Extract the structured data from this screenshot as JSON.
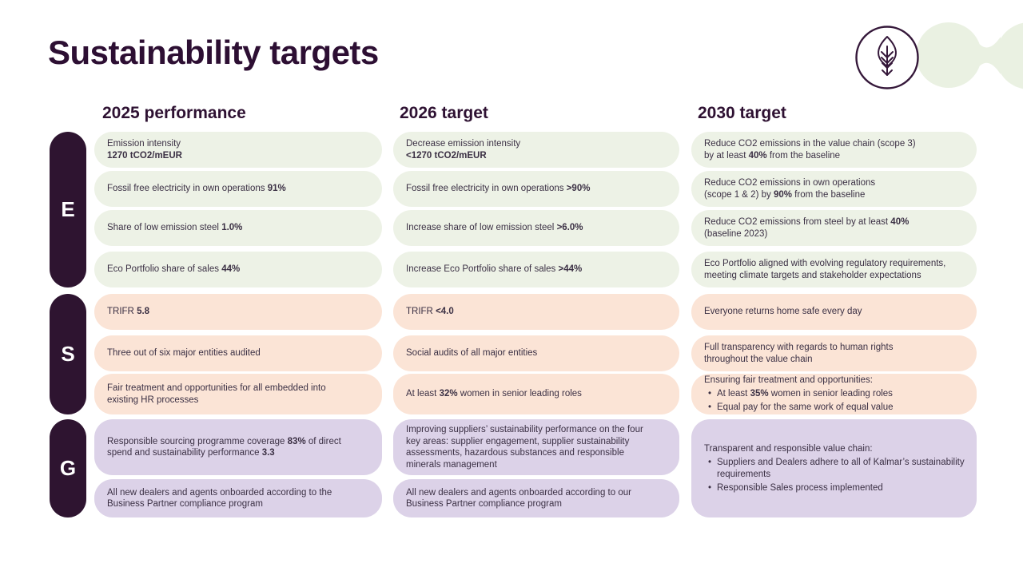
{
  "title": "Sustainability targets",
  "bullet_glyph": "•",
  "brand": {
    "leaf_icon": "leaf-with-arrow-in-circle",
    "circle_stroke_color": "#35183a",
    "blob_color": "#eaf1e2"
  },
  "colors": {
    "dark_purple": "#2e1430",
    "environment_cell": "#edf2e6",
    "social_cell": "#fbe4d6",
    "governance_cell": "#dcd2e8",
    "text": "#3b3044"
  },
  "columns": [
    {
      "key": "2025",
      "label": "2025 performance"
    },
    {
      "key": "2026",
      "label": "2026 target"
    },
    {
      "key": "2030",
      "label": "2030 target"
    }
  ],
  "groups": [
    {
      "label": "E",
      "row": 1,
      "span": 4
    },
    {
      "label": "S",
      "row": 5,
      "span": 3
    },
    {
      "label": "G",
      "row": 8,
      "span": 2
    }
  ],
  "cells": [
    {
      "column": "2025",
      "row": 1,
      "group": "E",
      "lines": [
        {
          "bullet": false,
          "segments": [
            {
              "text": "Emission intensity",
              "bold": false
            }
          ]
        },
        {
          "bullet": false,
          "segments": [
            {
              "text": "1270 tCO2/mEUR",
              "bold": true
            }
          ]
        }
      ]
    },
    {
      "column": "2025",
      "row": 2,
      "group": "E",
      "lines": [
        {
          "bullet": false,
          "segments": [
            {
              "text": "Fossil free electricity in own operations ",
              "bold": false
            },
            {
              "text": "91%",
              "bold": true
            }
          ]
        }
      ]
    },
    {
      "column": "2025",
      "row": 3,
      "group": "E",
      "lines": [
        {
          "bullet": false,
          "segments": [
            {
              "text": "Share of low emission steel ",
              "bold": false
            },
            {
              "text": "1.0%",
              "bold": true
            }
          ]
        }
      ]
    },
    {
      "column": "2025",
      "row": 4,
      "group": "E",
      "lines": [
        {
          "bullet": false,
          "segments": [
            {
              "text": "Eco Portfolio share of sales ",
              "bold": false
            },
            {
              "text": "44%",
              "bold": true
            }
          ]
        }
      ]
    },
    {
      "column": "2025",
      "row": 5,
      "group": "S",
      "lines": [
        {
          "bullet": false,
          "segments": [
            {
              "text": "TRIFR ",
              "bold": false
            },
            {
              "text": "5.8",
              "bold": true
            }
          ]
        }
      ]
    },
    {
      "column": "2025",
      "row": 6,
      "group": "S",
      "lines": [
        {
          "bullet": false,
          "segments": [
            {
              "text": "Three out of six major entities audited",
              "bold": false
            }
          ]
        }
      ]
    },
    {
      "column": "2025",
      "row": 7,
      "group": "S",
      "lines": [
        {
          "bullet": false,
          "segments": [
            {
              "text": "Fair treatment and opportunities for all embedded into",
              "bold": false
            }
          ]
        },
        {
          "bullet": false,
          "segments": [
            {
              "text": "existing HR processes",
              "bold": false
            }
          ]
        }
      ]
    },
    {
      "column": "2025",
      "row": 8,
      "group": "G",
      "lines": [
        {
          "bullet": false,
          "segments": [
            {
              "text": "Responsible sourcing programme coverage ",
              "bold": false
            },
            {
              "text": "83%",
              "bold": true
            },
            {
              "text": " of direct",
              "bold": false
            }
          ]
        },
        {
          "bullet": false,
          "segments": [
            {
              "text": "spend and sustainability performance ",
              "bold": false
            },
            {
              "text": "3.3",
              "bold": true
            }
          ]
        }
      ]
    },
    {
      "column": "2025",
      "row": 9,
      "group": "G",
      "lines": [
        {
          "bullet": false,
          "segments": [
            {
              "text": "All new dealers and agents onboarded according to the",
              "bold": false
            }
          ]
        },
        {
          "bullet": false,
          "segments": [
            {
              "text": "Business Partner compliance program",
              "bold": false
            }
          ]
        }
      ]
    },
    {
      "column": "2026",
      "row": 1,
      "group": "E",
      "lines": [
        {
          "bullet": false,
          "segments": [
            {
              "text": "Decrease emission intensity",
              "bold": false
            }
          ]
        },
        {
          "bullet": false,
          "segments": [
            {
              "text": "<1270 tCO2/mEUR",
              "bold": true
            }
          ]
        }
      ]
    },
    {
      "column": "2026",
      "row": 2,
      "group": "E",
      "lines": [
        {
          "bullet": false,
          "segments": [
            {
              "text": "Fossil free electricity in own operations ",
              "bold": false
            },
            {
              "text": ">90%",
              "bold": true
            }
          ]
        }
      ]
    },
    {
      "column": "2026",
      "row": 3,
      "group": "E",
      "lines": [
        {
          "bullet": false,
          "segments": [
            {
              "text": "Increase share of low emission steel ",
              "bold": false
            },
            {
              "text": ">6.0%",
              "bold": true
            }
          ]
        }
      ]
    },
    {
      "column": "2026",
      "row": 4,
      "group": "E",
      "lines": [
        {
          "bullet": false,
          "segments": [
            {
              "text": "Increase Eco Portfolio share of sales ",
              "bold": false
            },
            {
              "text": ">44%",
              "bold": true
            }
          ]
        }
      ]
    },
    {
      "column": "2026",
      "row": 5,
      "group": "S",
      "lines": [
        {
          "bullet": false,
          "segments": [
            {
              "text": "TRIFR ",
              "bold": false
            },
            {
              "text": "<4.0",
              "bold": true
            }
          ]
        }
      ]
    },
    {
      "column": "2026",
      "row": 6,
      "group": "S",
      "lines": [
        {
          "bullet": false,
          "segments": [
            {
              "text": "Social audits of all major entities",
              "bold": false
            }
          ]
        }
      ]
    },
    {
      "column": "2026",
      "row": 7,
      "group": "S",
      "lines": [
        {
          "bullet": false,
          "segments": [
            {
              "text": "At least ",
              "bold": false
            },
            {
              "text": "32%",
              "bold": true
            },
            {
              "text": " women in senior leading roles",
              "bold": false
            }
          ]
        }
      ]
    },
    {
      "column": "2026",
      "row": 8,
      "group": "G",
      "lines": [
        {
          "bullet": false,
          "segments": [
            {
              "text": "Improving suppliers’ sustainability performance on the four",
              "bold": false
            }
          ]
        },
        {
          "bullet": false,
          "segments": [
            {
              "text": "key areas: supplier engagement, supplier sustainability",
              "bold": false
            }
          ]
        },
        {
          "bullet": false,
          "segments": [
            {
              "text": "assessments, hazardous substances and responsible",
              "bold": false
            }
          ]
        },
        {
          "bullet": false,
          "segments": [
            {
              "text": "minerals management",
              "bold": false
            }
          ]
        }
      ]
    },
    {
      "column": "2026",
      "row": 9,
      "group": "G",
      "lines": [
        {
          "bullet": false,
          "segments": [
            {
              "text": "All new dealers and agents onboarded  according to our",
              "bold": false
            }
          ]
        },
        {
          "bullet": false,
          "segments": [
            {
              "text": "Business Partner compliance program",
              "bold": false
            }
          ]
        }
      ]
    },
    {
      "column": "2030",
      "row": 1,
      "group": "E",
      "lines": [
        {
          "bullet": false,
          "segments": [
            {
              "text": "Reduce CO2 emissions in the value chain (scope 3)",
              "bold": false
            }
          ]
        },
        {
          "bullet": false,
          "segments": [
            {
              "text": "by at least ",
              "bold": false
            },
            {
              "text": "40%",
              "bold": true
            },
            {
              "text": " from the baseline",
              "bold": false
            }
          ]
        }
      ]
    },
    {
      "column": "2030",
      "row": 2,
      "group": "E",
      "lines": [
        {
          "bullet": false,
          "segments": [
            {
              "text": "Reduce CO2 emissions in own operations",
              "bold": false
            }
          ]
        },
        {
          "bullet": false,
          "segments": [
            {
              "text": "(scope 1 & 2) by ",
              "bold": false
            },
            {
              "text": "90%",
              "bold": true
            },
            {
              "text": " from the baseline",
              "bold": false
            }
          ]
        }
      ]
    },
    {
      "column": "2030",
      "row": 3,
      "group": "E",
      "lines": [
        {
          "bullet": false,
          "segments": [
            {
              "text": "Reduce CO2 emissions from steel by at least ",
              "bold": false
            },
            {
              "text": "40%",
              "bold": true
            }
          ]
        },
        {
          "bullet": false,
          "segments": [
            {
              "text": "(baseline 2023)",
              "bold": false
            }
          ]
        }
      ]
    },
    {
      "column": "2030",
      "row": 4,
      "group": "E",
      "lines": [
        {
          "bullet": false,
          "segments": [
            {
              "text": "Eco Portfolio aligned with evolving regulatory requirements,",
              "bold": false
            }
          ]
        },
        {
          "bullet": false,
          "segments": [
            {
              "text": "meeting climate targets and stakeholder expectations",
              "bold": false
            }
          ]
        }
      ]
    },
    {
      "column": "2030",
      "row": 5,
      "group": "S",
      "lines": [
        {
          "bullet": false,
          "segments": [
            {
              "text": "Everyone returns home safe every day",
              "bold": false
            }
          ]
        }
      ]
    },
    {
      "column": "2030",
      "row": 6,
      "group": "S",
      "lines": [
        {
          "bullet": false,
          "segments": [
            {
              "text": "Full transparency with regards to human rights",
              "bold": false
            }
          ]
        },
        {
          "bullet": false,
          "segments": [
            {
              "text": "throughout the value chain",
              "bold": false
            }
          ]
        }
      ]
    },
    {
      "column": "2030",
      "row": 7,
      "group": "S",
      "lines": [
        {
          "bullet": false,
          "segments": [
            {
              "text": "Ensuring fair treatment and opportunities:",
              "bold": false
            }
          ]
        },
        {
          "bullet": true,
          "segments": [
            {
              "text": "At least ",
              "bold": false
            },
            {
              "text": "35%",
              "bold": true
            },
            {
              "text": " women in senior leading roles",
              "bold": false
            }
          ]
        },
        {
          "bullet": true,
          "segments": [
            {
              "text": "Equal pay for the same work of equal value",
              "bold": false
            }
          ]
        }
      ]
    },
    {
      "column": "2030",
      "row": 8,
      "span": 2,
      "group": "G",
      "lines": [
        {
          "bullet": false,
          "segments": [
            {
              "text": "Transparent and responsible value chain:",
              "bold": false
            }
          ]
        },
        {
          "bullet": true,
          "segments": [
            {
              "text": "Suppliers and Dealers adhere to all of Kalmar’s sustainability requirements",
              "bold": false
            }
          ]
        },
        {
          "bullet": true,
          "segments": [
            {
              "text": "Responsible Sales process implemented",
              "bold": false
            }
          ]
        }
      ]
    }
  ]
}
